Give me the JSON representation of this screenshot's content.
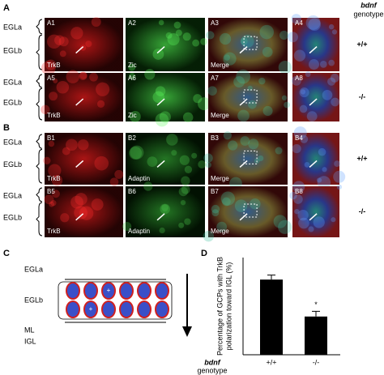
{
  "figure": {
    "panel_A": {
      "letter": "A",
      "genotype_header": [
        "bdnf",
        "genotype"
      ],
      "rows": [
        {
          "layers": [
            "EGLa",
            "EGLb"
          ],
          "genotype": "+/+",
          "tiles": [
            {
              "id": "A1",
              "stain": "TrkB"
            },
            {
              "id": "A2",
              "stain": "Zic"
            },
            {
              "id": "A3",
              "stain": "Merge"
            },
            {
              "id": "A4"
            }
          ]
        },
        {
          "layers": [
            "EGLa",
            "EGLb"
          ],
          "genotype": "-/-",
          "tiles": [
            {
              "id": "A5",
              "stain": "TrkB"
            },
            {
              "id": "A6",
              "stain": "Zic"
            },
            {
              "id": "A7",
              "stain": "Merge"
            },
            {
              "id": "A8"
            }
          ]
        }
      ]
    },
    "panel_B": {
      "letter": "B",
      "rows": [
        {
          "layers": [
            "EGLa",
            "EGLb"
          ],
          "genotype": "+/+",
          "tiles": [
            {
              "id": "B1",
              "stain": "TrkB"
            },
            {
              "id": "B2",
              "stain": "Adaptin"
            },
            {
              "id": "B3",
              "stain": "Merge"
            },
            {
              "id": "B4"
            }
          ]
        },
        {
          "layers": [
            "EGLa",
            "EGLb"
          ],
          "genotype": "-/-",
          "tiles": [
            {
              "id": "B5",
              "stain": "TrkB"
            },
            {
              "id": "B6",
              "stain": "Adaptin"
            },
            {
              "id": "B7",
              "stain": "Merge"
            },
            {
              "id": "B8"
            }
          ]
        }
      ]
    },
    "panel_C": {
      "letter": "C",
      "layers": [
        "EGLa",
        "EGLb",
        "ML",
        "IGL"
      ],
      "cell_labels": [
        "+",
        "+"
      ]
    }
  },
  "chart_data": {
    "type": "bar",
    "letter": "D",
    "y_label": [
      "Percentage of GCPs with TrkB",
      "polarization toward IGL (%)"
    ],
    "x_label": [
      "bdnf",
      "genotype"
    ],
    "categories": [
      "+/+",
      "-/-"
    ],
    "values": [
      23.2,
      11.8
    ],
    "errors": [
      1.4,
      1.6
    ],
    "annotation": "*",
    "color": "#000000",
    "ylim": [
      0,
      30
    ]
  }
}
